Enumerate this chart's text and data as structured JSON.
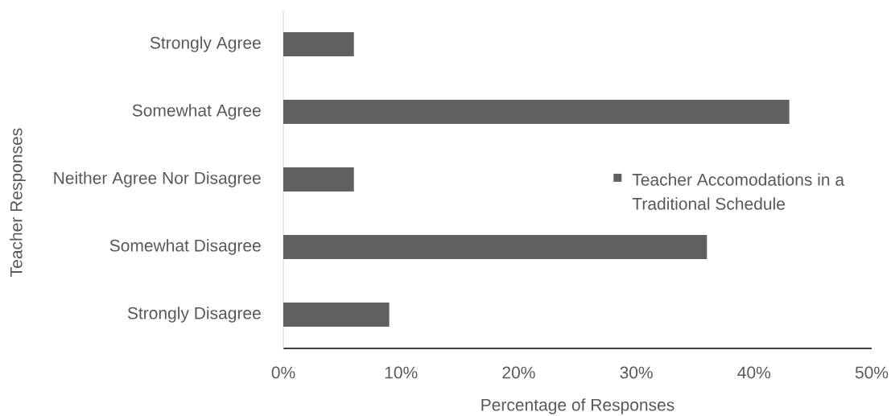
{
  "chart_data": {
    "type": "bar",
    "orientation": "horizontal",
    "xlabel": "Percentage of Responses",
    "ylabel": "Teacher Responses",
    "categories": [
      "Strongly Agree",
      "Somewhat Agree",
      "Neither Agree Nor Disagree",
      "Somewhat Disagree",
      "Strongly Disagree"
    ],
    "series": [
      {
        "name": "Teacher Accomodations in a Traditional Schedule",
        "color": "#606060",
        "values": [
          6,
          43,
          6,
          36,
          9
        ]
      }
    ],
    "xlim": [
      0,
      50
    ],
    "xticks": [
      {
        "value": 0,
        "label": "0%"
      },
      {
        "value": 10,
        "label": "10%"
      },
      {
        "value": 20,
        "label": "20%"
      },
      {
        "value": 30,
        "label": "30%"
      },
      {
        "value": 40,
        "label": "40%"
      },
      {
        "value": 50,
        "label": "50%"
      }
    ],
    "grid": false,
    "legend": "right"
  }
}
